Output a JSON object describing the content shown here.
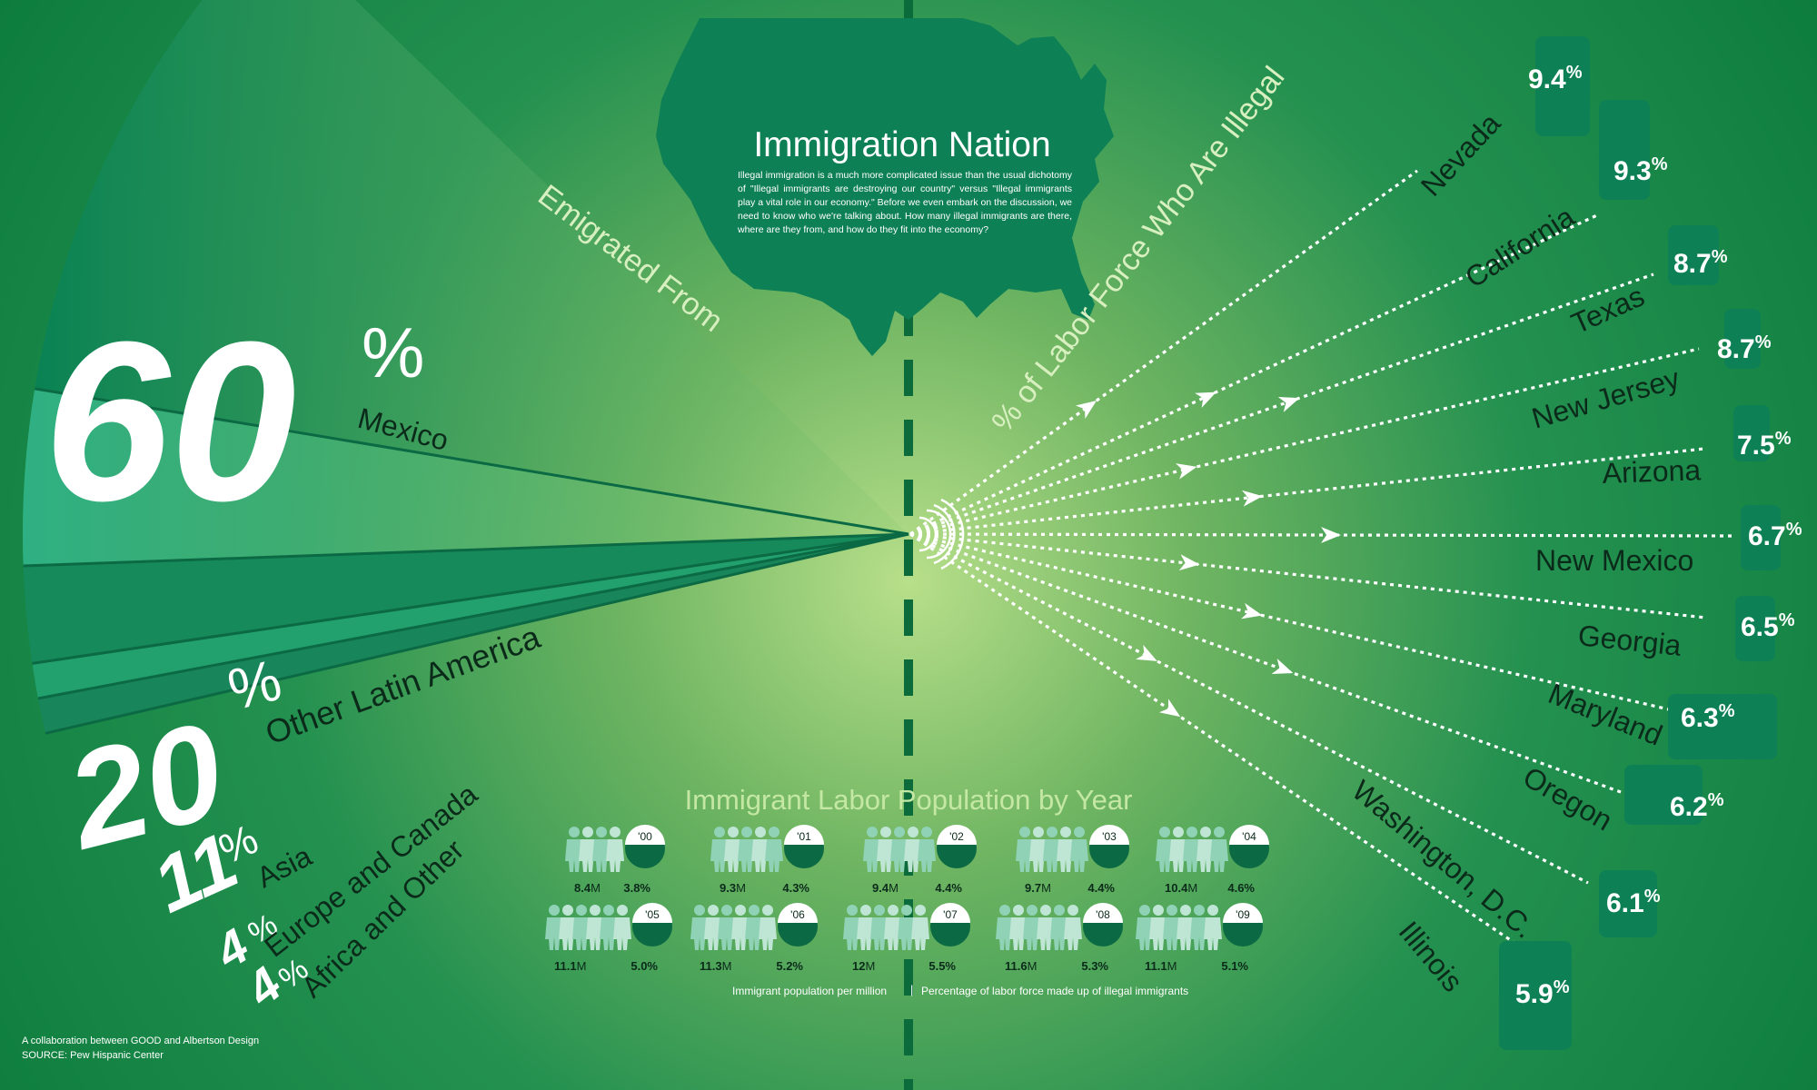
{
  "title": "Immigration Nation",
  "intro": "Illegal immigration is a much more complicated issue than the usual dichotomy of \"Illegal immigrants are destroying our country\" versus \"Illegal immigrants play a vital role in our economy.\" Before we even embark on the discussion, we need to know who we're talking about. How many illegal immigrants are there, where are they from, and how do they fit into the economy?",
  "colors": {
    "bg_dark": "#0b7a3c",
    "bg_glow": "#b5de84",
    "accent_green": "#7cc242",
    "map_green": "#0e8055",
    "fan_dark": "#0a7d52",
    "fan_light": "#3fb386"
  },
  "chart_data": [
    {
      "type": "pie",
      "title": "Emigrated From",
      "slices": [
        {
          "label": "Mexico",
          "value": 60,
          "value_text": "60",
          "unit": "%"
        },
        {
          "label": "Other Latin America",
          "value": 20,
          "value_text": "20",
          "unit": "%"
        },
        {
          "label": "Asia",
          "value": 11,
          "value_text": "11",
          "unit": "%"
        },
        {
          "label": "Europe and Canada",
          "value": 4,
          "value_text": "4",
          "unit": "%"
        },
        {
          "label": "Africa and Other",
          "value": 4,
          "value_text": "4",
          "unit": "%"
        }
      ]
    },
    {
      "type": "bar",
      "title": "% of Labor Force Who Are Illegal",
      "categories": [
        "Nevada",
        "California",
        "Texas",
        "New Jersey",
        "Arizona",
        "New Mexico",
        "Georgia",
        "Maryland",
        "Oregon",
        "Washington, D.C.",
        "Illinois"
      ],
      "values": [
        9.4,
        9.3,
        8.7,
        8.7,
        7.5,
        6.7,
        6.5,
        6.3,
        6.2,
        6.1,
        5.9
      ],
      "value_labels": [
        "9.4",
        "9.3",
        "8.7",
        "8.7",
        "7.5",
        "6.7",
        "6.5",
        "6.3",
        "6.2",
        "6.1",
        "5.9"
      ],
      "unit": "%"
    },
    {
      "type": "table",
      "title": "Immigrant Labor Population by Year",
      "years": [
        "'00",
        "'01",
        "'02",
        "'03",
        "'04",
        "'05",
        "'06",
        "'07",
        "'08",
        "'09"
      ],
      "population_millions": [
        8.4,
        9.3,
        9.4,
        9.7,
        10.4,
        11.1,
        11.3,
        12,
        11.6,
        11.1
      ],
      "population_labels": [
        "8.4",
        "9.3",
        "9.4",
        "9.7",
        "10.4",
        "11.1",
        "11.3",
        "12",
        "11.6",
        "11.1"
      ],
      "population_unit": "M",
      "illegal_share_percent": [
        3.8,
        4.3,
        4.4,
        4.4,
        4.6,
        5.0,
        5.2,
        5.5,
        5.3,
        5.1
      ],
      "share_labels": [
        "3.8%",
        "4.3%",
        "4.4%",
        "4.4%",
        "4.6%",
        "5.0%",
        "5.2%",
        "5.5%",
        "5.3%",
        "5.1%"
      ],
      "legend": {
        "population": "Immigrant population per million",
        "share": "Percentage of labor force made up of illegal immigrants"
      }
    }
  ],
  "credits": {
    "line1": "A collaboration between GOOD and Albertson Design",
    "line2": "SOURCE: Pew Hispanic Center"
  }
}
